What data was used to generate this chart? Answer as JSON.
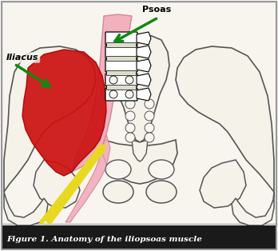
{
  "title": "Figure 1. Anatomy of the iliopsoas muscle",
  "label_iliacus": "Iliacus",
  "label_psoas": "Psoas",
  "bg_color": "#f8f5ef",
  "caption_bg": "#1a1a1a",
  "caption_text_color": "#ffffff",
  "border_color": "#aaaaaa",
  "pink_muscle_color": "#f2aab8",
  "red_muscle_color": "#cc1111",
  "yellow_tendon_color": "#e8d820",
  "green_arrow_color": "#118811",
  "bone_fill": "#f5f2ea",
  "bone_line": "#555555",
  "white": "#ffffff"
}
